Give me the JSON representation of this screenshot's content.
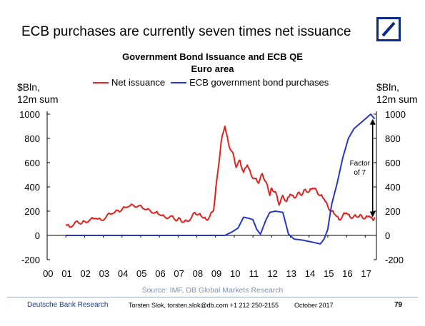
{
  "header": {
    "headline": "ECB purchases are currently seven times net issuance",
    "logo_icon": "deutsche-bank-logo-icon"
  },
  "chart_data": {
    "type": "line",
    "title": "Government Bond Issuance and ECB QE",
    "subtitle": "Euro area",
    "ylabel_left": [
      "$Bln,",
      "12m sum"
    ],
    "ylabel_right": [
      "$Bln,",
      "12m sum"
    ],
    "ylim": [
      -200,
      1000
    ],
    "yticks": [
      1000,
      800,
      600,
      400,
      200,
      0,
      -200
    ],
    "xlim": [
      2000,
      2017.6
    ],
    "xticks": [
      "00",
      "01",
      "02",
      "03",
      "04",
      "05",
      "06",
      "07",
      "08",
      "09",
      "10",
      "11",
      "12",
      "13",
      "14",
      "15",
      "16",
      "17"
    ],
    "grid": false,
    "legend": "top",
    "colors": {
      "net_issuance": "#e3211c",
      "ecb_purchases": "#2437c8"
    },
    "series": [
      {
        "name": "Net issuance",
        "x": [
          2001.0,
          2001.2,
          2001.5,
          2001.8,
          2002.0,
          2002.3,
          2002.6,
          2002.9,
          2003.2,
          2003.5,
          2003.8,
          2004.0,
          2004.3,
          2004.6,
          2004.9,
          2005.2,
          2005.5,
          2005.8,
          2006.0,
          2006.3,
          2006.6,
          2006.9,
          2007.1,
          2007.3,
          2007.6,
          2007.9,
          2008.1,
          2008.3,
          2008.5,
          2008.7,
          2008.9,
          2009.1,
          2009.3,
          2009.5,
          2009.7,
          2009.9,
          2010.1,
          2010.3,
          2010.5,
          2010.7,
          2010.9,
          2011.1,
          2011.3,
          2011.5,
          2011.7,
          2011.9,
          2012.0,
          2012.2,
          2012.4,
          2012.6,
          2012.8,
          2013.0,
          2013.2,
          2013.4,
          2013.6,
          2013.8,
          2014.0,
          2014.2,
          2014.4,
          2014.6,
          2014.8,
          2015.0,
          2015.2,
          2015.4,
          2015.6,
          2015.8,
          2016.0,
          2016.2,
          2016.4,
          2016.6,
          2016.8,
          2017.0,
          2017.2,
          2017.4,
          2017.5
        ],
        "values": [
          90,
          70,
          110,
          95,
          115,
          130,
          140,
          125,
          165,
          180,
          205,
          215,
          235,
          250,
          245,
          215,
          205,
          190,
          170,
          150,
          160,
          120,
          140,
          110,
          120,
          190,
          175,
          150,
          130,
          160,
          210,
          500,
          770,
          900,
          750,
          690,
          560,
          620,
          520,
          580,
          500,
          470,
          430,
          510,
          440,
          330,
          390,
          360,
          250,
          330,
          280,
          340,
          310,
          350,
          330,
          380,
          360,
          390,
          370,
          330,
          300,
          240,
          200,
          170,
          130,
          165,
          185,
          150,
          160,
          150,
          165,
          140,
          160,
          130,
          150
        ]
      },
      {
        "name": "ECB government bond purchases",
        "x": [
          2001.0,
          2008.0,
          2009.5,
          2009.9,
          2010.2,
          2010.5,
          2010.8,
          2011.0,
          2011.2,
          2011.4,
          2011.7,
          2011.9,
          2012.2,
          2012.6,
          2012.9,
          2013.2,
          2013.7,
          2014.0,
          2014.3,
          2014.6,
          2014.8,
          2015.0,
          2015.2,
          2015.5,
          2015.8,
          2016.1,
          2016.4,
          2016.7,
          2017.0,
          2017.3,
          2017.5
        ],
        "values": [
          0,
          0,
          0,
          30,
          60,
          150,
          140,
          130,
          50,
          10,
          130,
          190,
          200,
          190,
          10,
          -30,
          -40,
          -50,
          -60,
          -70,
          -30,
          50,
          250,
          430,
          640,
          800,
          880,
          920,
          960,
          1000,
          960
        ]
      }
    ],
    "annotations": [
      {
        "text_lines": [
          "Factor",
          "of 7"
        ],
        "x": 2017.4,
        "y_from": 150,
        "y_to": 960
      }
    ]
  },
  "legend": {
    "net_issuance": "Net issuance",
    "ecb_purchases": "ECB government bond purchases"
  },
  "source": "Source: IMF, DB Global Markets Research",
  "footer": {
    "org": "Deutsche Bank Research",
    "contact": "Torsten Slok, torsten.slok@db.com  +1 212 250-2155",
    "date": "October  2017",
    "page": "79"
  }
}
